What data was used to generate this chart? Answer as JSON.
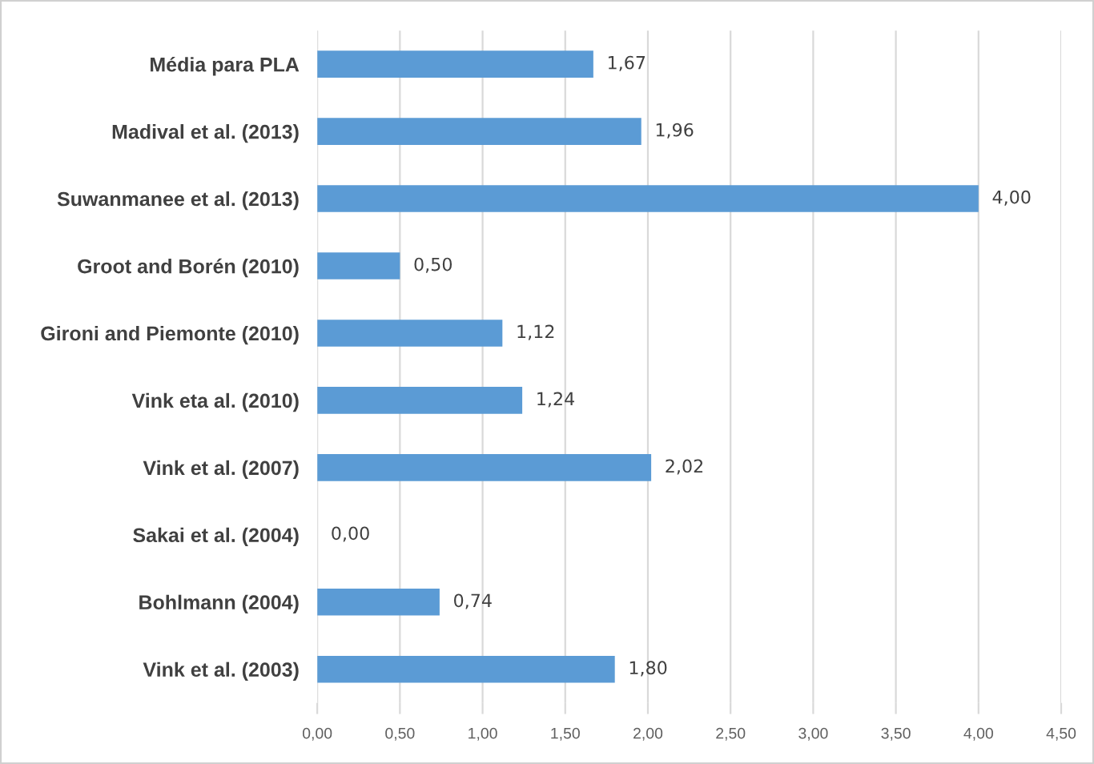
{
  "chart_data": {
    "type": "bar",
    "orientation": "horizontal",
    "categories": [
      "Média para PLA",
      "Madival et al. (2013)",
      "Suwanmanee et al. (2013)",
      "Groot and Borén (2010)",
      "Gironi and Piemonte (2010)",
      "Vink eta al. (2010)",
      "Vink et al. (2007)",
      "Sakai et al. (2004)",
      "Bohlmann (2004)",
      "Vink et al. (2003)"
    ],
    "values": [
      1.67,
      1.96,
      4.0,
      0.5,
      1.12,
      1.24,
      2.02,
      0.0,
      0.74,
      1.8
    ],
    "value_labels": [
      "1,67",
      "1,96",
      "4,00",
      "0,50",
      "1,12",
      "1,24",
      "2,02",
      "0,00",
      "0,74",
      "1,80"
    ],
    "color": "#5b9bd5",
    "xlim": [
      0,
      4.5
    ],
    "xticks": [
      {
        "value": 0,
        "label": "0,00"
      },
      {
        "value": 0.5,
        "label": "0,50"
      },
      {
        "value": 1,
        "label": "1,00"
      },
      {
        "value": 1.5,
        "label": "1,50"
      },
      {
        "value": 2,
        "label": "2,00"
      },
      {
        "value": 2.5,
        "label": "2,50"
      },
      {
        "value": 3,
        "label": "3,00"
      },
      {
        "value": 3.5,
        "label": "3,50"
      },
      {
        "value": 4,
        "label": "4,00"
      },
      {
        "value": 4.5,
        "label": "4,50"
      }
    ],
    "grid": "x"
  }
}
